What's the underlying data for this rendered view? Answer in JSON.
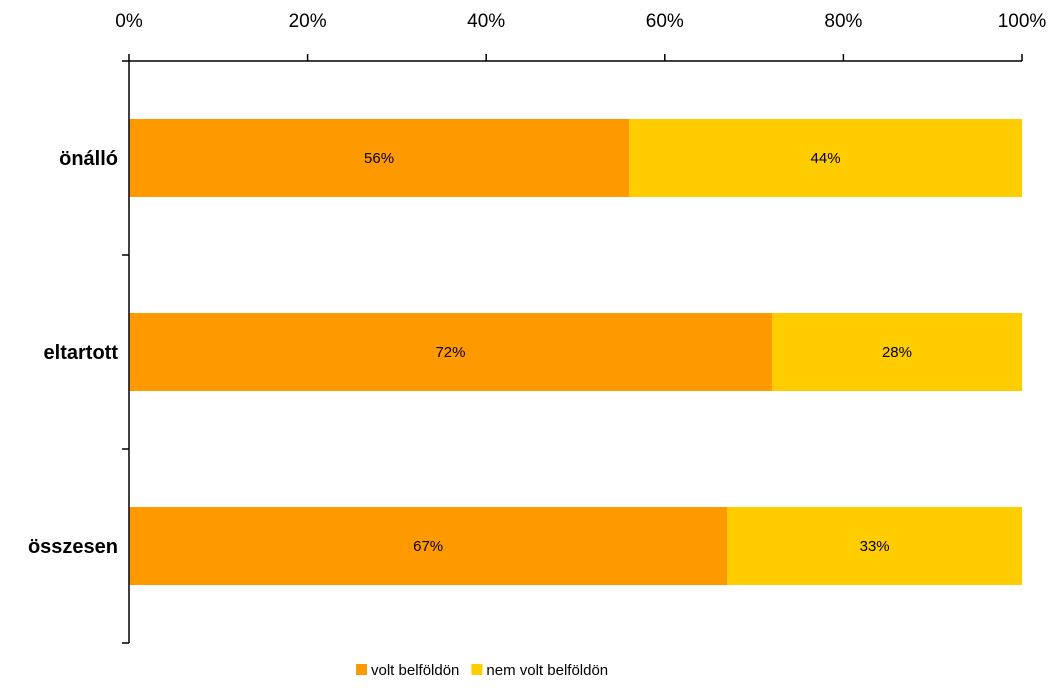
{
  "chart_data": {
    "type": "bar",
    "orientation": "horizontal",
    "stacked": "percent",
    "categories": [
      "önálló",
      "eltartott",
      "összesen"
    ],
    "series": [
      {
        "name": "volt belföldön",
        "values": [
          56,
          72,
          67
        ],
        "color": "#FF9900"
      },
      {
        "name": "nem volt belföldön",
        "values": [
          44,
          28,
          33
        ],
        "color": "#FFCC00"
      }
    ],
    "data_labels": [
      [
        "56%",
        "72%",
        "67%"
      ],
      [
        "44%",
        "28%",
        "33%"
      ]
    ],
    "x_ticks": [
      "0%",
      "20%",
      "40%",
      "60%",
      "80%",
      "100%"
    ],
    "x_axis_position": "top",
    "xlim": [
      0,
      100
    ],
    "grid": false,
    "legend_position": "bottom"
  }
}
